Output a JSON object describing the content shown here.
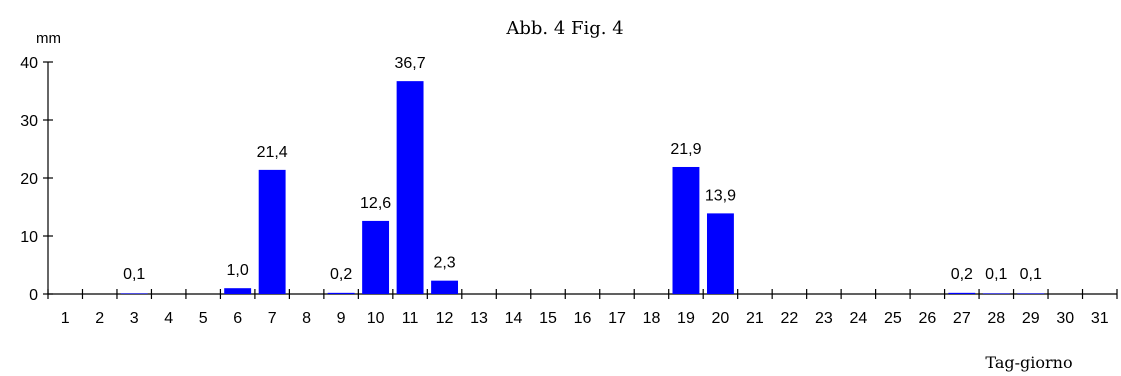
{
  "chart_data": {
    "type": "bar",
    "title": "Abb. 4   Fig. 4",
    "ylabel": "mm",
    "xlabel": "Tag-giorno",
    "ylim": [
      0,
      40
    ],
    "yticks": [
      0,
      10,
      20,
      30,
      40
    ],
    "categories": [
      "1",
      "2",
      "3",
      "4",
      "5",
      "6",
      "7",
      "8",
      "9",
      "10",
      "11",
      "12",
      "13",
      "14",
      "15",
      "16",
      "17",
      "18",
      "19",
      "20",
      "21",
      "22",
      "23",
      "24",
      "25",
      "26",
      "27",
      "28",
      "29",
      "30",
      "31"
    ],
    "values": [
      null,
      null,
      0.1,
      null,
      null,
      1.0,
      21.4,
      null,
      0.2,
      12.6,
      36.7,
      2.3,
      null,
      null,
      null,
      null,
      null,
      null,
      21.9,
      13.9,
      null,
      null,
      null,
      null,
      null,
      null,
      0.2,
      0.1,
      0.1,
      null,
      null
    ],
    "value_labels": [
      "",
      "",
      "0,1",
      "",
      "",
      "1,0",
      "21,4",
      "",
      "0,2",
      "12,6",
      "36,7",
      "2,3",
      "",
      "",
      "",
      "",
      "",
      "",
      "21,9",
      "13,9",
      "",
      "",
      "",
      "",
      "",
      "",
      "0,2",
      "0,1",
      "0,1",
      "",
      ""
    ],
    "bar_color": "#0000ff",
    "grid": false,
    "legend": "none"
  }
}
